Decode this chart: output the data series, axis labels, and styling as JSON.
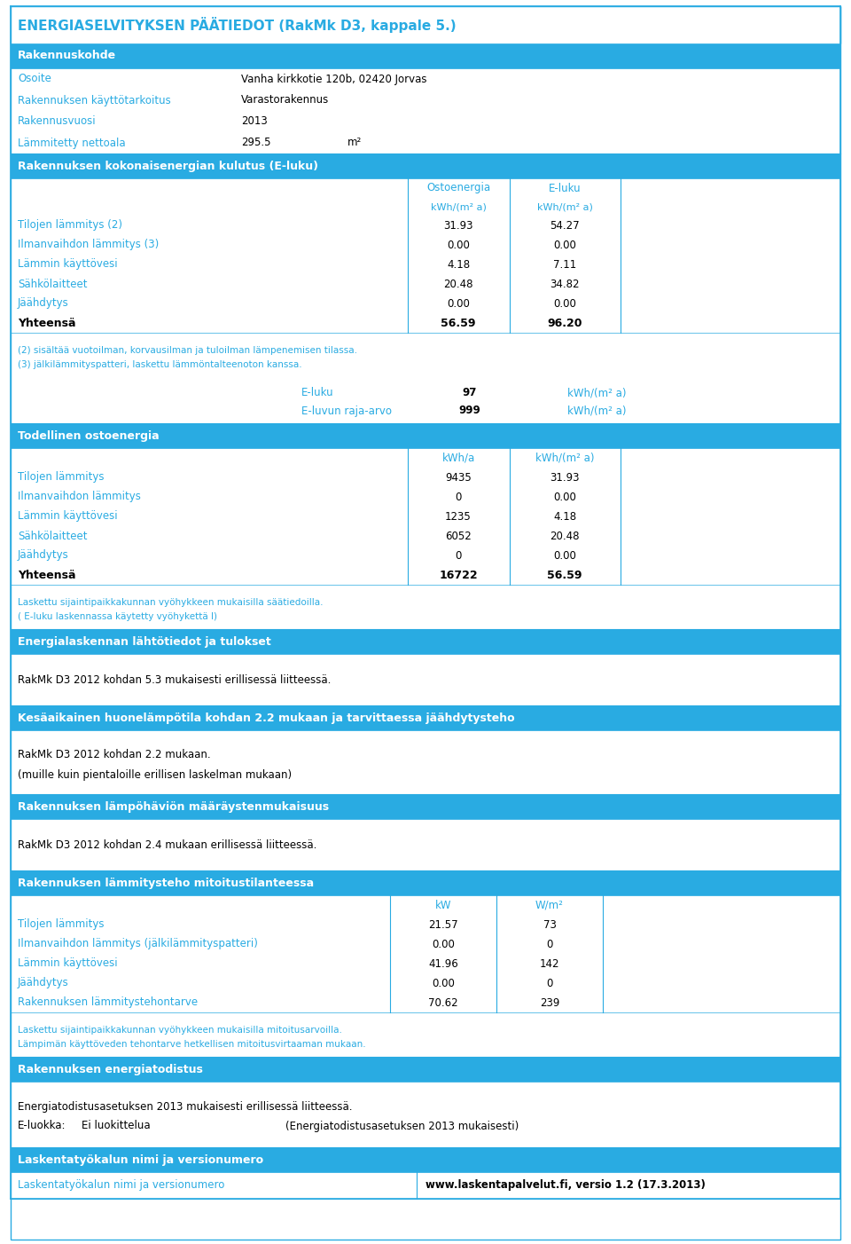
{
  "title": "ENERGIASELVITYKSEN PÄÄTIEDOT (RakMk D3, kappale 5.)",
  "header_bg": "#29ABE2",
  "white": "#FFFFFF",
  "black": "#000000",
  "label_color": "#29ABE2",
  "border_color": "#29ABE2",
  "section_headers": [
    "Rakennuskohde",
    "Rakennuksen kokonaisenergian kulutus (E-luku)",
    "Todellinen ostoenergia",
    "Energialaskennan lähtötiedot ja tulokset",
    "Kesäaikainen huonelämpötila kohdan 2.2 mukaan ja tarvittaessa jäähdytysteho",
    "Rakennuksen lämpöhäviön määräystenmukaisuus",
    "Rakennuksen lämmitysteho mitoitustilanteessa",
    "Rakennuksen energiatodistus",
    "Laskentatyökalun nimi ja versionumero"
  ],
  "rakennuskohde_labels": [
    "Osoite",
    "Rakennuksen käyttötarkoitus",
    "Rakennusvuosi",
    "Lämmitetty nettoala"
  ],
  "rakennuskohde_values": [
    "Vanha kirkkotie 120b, 02420 Jorvas",
    "Varastorakennus",
    "2013",
    "295.5"
  ],
  "rakennuskohde_units": [
    "",
    "",
    "",
    "m²"
  ],
  "eluku_rows": [
    [
      "Tilojen lämmitys (2)",
      "31.93",
      "54.27"
    ],
    [
      "Ilmanvaihdon lämmitys (3)",
      "0.00",
      "0.00"
    ],
    [
      "Lämmin käyttövesi",
      "4.18",
      "7.11"
    ],
    [
      "Sähkölaitteet",
      "20.48",
      "34.82"
    ],
    [
      "Jäähdytys",
      "0.00",
      "0.00"
    ]
  ],
  "eluku_total": [
    "Yhteensä",
    "56.59",
    "96.20"
  ],
  "eluku_notes": [
    "(2) sisältää vuotoilman, korvausilman ja tuloilman lämpenemisen tilassa.",
    "(3) jälkilämmityspatteri, laskettu lämmöntalteenoton kanssa."
  ],
  "eluku_extra": [
    [
      "E-luku",
      "97",
      "kWh/(m² a)"
    ],
    [
      "E-luvun raja-arvo",
      "999",
      "kWh/(m² a)"
    ]
  ],
  "todellinen_rows": [
    [
      "Tilojen lämmitys",
      "9435",
      "31.93"
    ],
    [
      "Ilmanvaihdon lämmitys",
      "0",
      "0.00"
    ],
    [
      "Lämmin käyttövesi",
      "1235",
      "4.18"
    ],
    [
      "Sähkölaitteet",
      "6052",
      "20.48"
    ],
    [
      "Jäähdytys",
      "0",
      "0.00"
    ]
  ],
  "todellinen_total": [
    "Yhteensä",
    "16722",
    "56.59"
  ],
  "todellinen_notes": [
    "Laskettu sijaintipaikkakunnan vyöhykkeen mukaisilla säätiedoilla.",
    "( E-luku laskennassa käytetty vyöhykettä I)"
  ],
  "energialask_text": "RakMk D3 2012 kohdan 5.3 mukaisesti erillisessä liitteessä.",
  "kesaaikainen_text1": "RakMk D3 2012 kohdan 2.2 mukaan.",
  "kesaaikainen_text2": "(muille kuin pientaloille erillisen laskelman mukaan)",
  "lampohavio_text": "RakMk D3 2012 kohdan 2.4 mukaan erillisessä liitteessä.",
  "mitoitus_rows": [
    [
      "Tilojen lämmitys",
      "21.57",
      "73"
    ],
    [
      "Ilmanvaihdon lämmitys (jälkilämmityspatteri)",
      "0.00",
      "0"
    ],
    [
      "Lämmin käyttövesi",
      "41.96",
      "142"
    ],
    [
      "Jäähdytys",
      "0.00",
      "0"
    ],
    [
      "Rakennuksen lämmitystehontarve",
      "70.62",
      "239"
    ]
  ],
  "mitoitus_notes": [
    "Laskettu sijaintipaikkakunnan vyöhykkeen mukaisilla mitoitusarvoilla.",
    "Lämpimän käyttöveden tehontarve hetkellisen mitoitusvirtaaman mukaan."
  ],
  "energiatodistus_text": "Energiatodistusasetuksen 2013 mukaisesti erillisessä liitteessä.",
  "eluokka_label": "E-luokka:",
  "eluokka_value": "Ei luokittelua",
  "eluokka_note": "(Energiatodistusasetuksen 2013 mukaisesti)",
  "laskenta_label": "Laskentatyökalun nimi ja versionumero",
  "laskenta_value": "www.laskentapalvelut.fi, versio 1.2 (17.3.2013)"
}
